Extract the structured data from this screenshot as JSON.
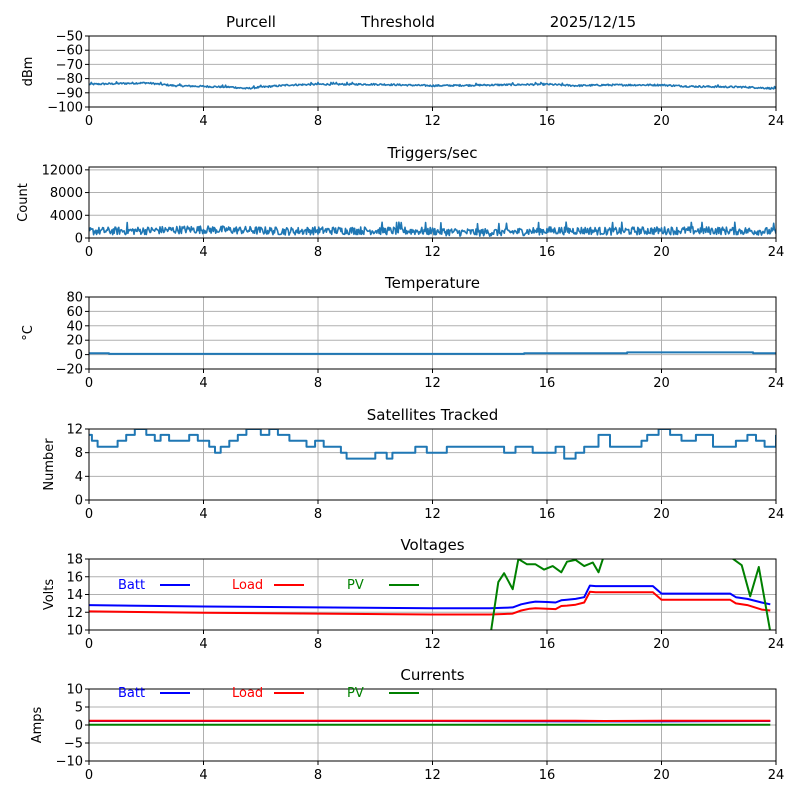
{
  "header": {
    "station": "Purcell",
    "mode": "Threshold",
    "date": "2025/12/15"
  },
  "chart_data": [
    {
      "id": "signal",
      "type": "line",
      "title": "",
      "xlabel": "",
      "ylabel": "dBm",
      "xlim": [
        0,
        24
      ],
      "ylim": [
        -100,
        -50
      ],
      "xticks": [
        0,
        4,
        8,
        12,
        16,
        20,
        24
      ],
      "yticks": [
        -100,
        -90,
        -80,
        -70,
        -60,
        -50
      ],
      "ytick_labels": [
        "−100",
        "−90",
        "−80",
        "−70",
        "−60",
        "−50"
      ],
      "grid": true,
      "noise": 0.6,
      "series": [
        {
          "name": "signal",
          "color": "#1f77b4",
          "x": [
            0,
            1,
            2,
            2.5,
            3,
            4,
            5,
            5.5,
            6,
            7,
            8,
            10,
            11,
            12,
            14,
            16,
            17,
            18,
            20,
            21,
            23,
            24
          ],
          "y": [
            -84,
            -83.5,
            -83,
            -84,
            -85,
            -85.5,
            -86,
            -87,
            -86,
            -84.5,
            -84,
            -84,
            -84.5,
            -85,
            -84.5,
            -84,
            -85,
            -84.5,
            -84.5,
            -85.5,
            -86,
            -87
          ]
        }
      ]
    },
    {
      "id": "triggers",
      "type": "line",
      "title": "Triggers/sec",
      "xlabel": "",
      "ylabel": "Count",
      "xlim": [
        0,
        24
      ],
      "ylim": [
        0,
        12500
      ],
      "xticks": [
        0,
        4,
        8,
        12,
        16,
        20,
        24
      ],
      "yticks": [
        0,
        4000,
        8000,
        12000
      ],
      "ytick_labels": [
        "0",
        "4000",
        "8000",
        "12000"
      ],
      "grid": true,
      "noise": 700,
      "series": [
        {
          "name": "triggers",
          "color": "#1f77b4",
          "x": [
            0,
            2,
            3.5,
            5,
            7,
            8,
            10,
            12,
            13,
            14,
            15,
            16,
            17.5,
            18,
            20,
            22,
            23.5,
            24
          ],
          "y": [
            1200,
            1300,
            1500,
            1400,
            1200,
            1300,
            1300,
            1200,
            1000,
            1000,
            1100,
            1300,
            1300,
            1200,
            1300,
            1300,
            1200,
            1100
          ]
        }
      ]
    },
    {
      "id": "temperature",
      "type": "line",
      "title": "Temperature",
      "xlabel": "",
      "ylabel": "°C",
      "xlim": [
        0,
        24
      ],
      "ylim": [
        -20,
        80
      ],
      "xticks": [
        0,
        4,
        8,
        12,
        16,
        20,
        24
      ],
      "yticks": [
        -20,
        0,
        20,
        40,
        60,
        80
      ],
      "ytick_labels": [
        "−20",
        "0",
        "20",
        "40",
        "60",
        "80"
      ],
      "grid": true,
      "step": true,
      "series": [
        {
          "name": "temperature",
          "color": "#1f77b4",
          "x": [
            0,
            0.7,
            15.2,
            18.8,
            23.2,
            24
          ],
          "y": [
            2,
            1,
            2,
            3,
            2,
            2
          ]
        }
      ]
    },
    {
      "id": "satellites",
      "type": "line",
      "title": "Satellites Tracked",
      "xlabel": "",
      "ylabel": "Number",
      "xlim": [
        0,
        24
      ],
      "ylim": [
        0,
        12
      ],
      "xticks": [
        0,
        4,
        8,
        12,
        16,
        20,
        24
      ],
      "yticks": [
        0,
        4,
        8,
        12
      ],
      "ytick_labels": [
        "0",
        "4",
        "8",
        "12"
      ],
      "grid": true,
      "step": true,
      "series": [
        {
          "name": "satellites",
          "color": "#1f77b4",
          "x": [
            0,
            0.1,
            0.3,
            1.0,
            1.3,
            1.6,
            2.0,
            2.3,
            2.5,
            2.8,
            3.0,
            3.5,
            3.8,
            4.0,
            4.2,
            4.4,
            4.6,
            4.9,
            5.2,
            5.5,
            6.0,
            6.3,
            6.6,
            7.0,
            7.6,
            7.9,
            8.2,
            8.4,
            8.8,
            9.0,
            9.6,
            10.0,
            10.4,
            10.6,
            11.2,
            11.4,
            11.8,
            12.5,
            12.8,
            14.2,
            14.5,
            14.9,
            15.5,
            16.3,
            16.6,
            17.0,
            17.3,
            17.8,
            18.2,
            18.6,
            19.3,
            19.5,
            19.9,
            20.3,
            20.7,
            21.2,
            21.8,
            22.2,
            22.6,
            23.0,
            23.3,
            23.6,
            24
          ],
          "y": [
            11,
            10,
            9,
            10,
            11,
            12,
            11,
            10,
            11,
            10,
            10,
            11,
            10,
            10,
            9,
            8,
            9,
            10,
            11,
            12,
            11,
            12,
            11,
            10,
            9,
            10,
            9,
            9,
            8,
            7,
            7,
            8,
            7,
            8,
            8,
            9,
            8,
            9,
            9,
            9,
            8,
            9,
            8,
            9,
            7,
            8,
            9,
            11,
            9,
            9,
            10,
            11,
            12,
            11,
            10,
            11,
            9,
            9,
            10,
            11,
            10,
            9,
            11
          ]
        }
      ]
    },
    {
      "id": "voltages",
      "type": "line",
      "title": "Voltages",
      "xlabel": "",
      "ylabel": "Volts",
      "xlim": [
        0,
        24
      ],
      "ylim": [
        10,
        18
      ],
      "xticks": [
        0,
        4,
        8,
        12,
        16,
        20,
        24
      ],
      "yticks": [
        10,
        12,
        14,
        16,
        18
      ],
      "ytick_labels": [
        "10",
        "12",
        "14",
        "16",
        "18"
      ],
      "grid": true,
      "legend": "top-left (inline row)",
      "series": [
        {
          "name": "Batt",
          "color": "#0000ff",
          "x": [
            0,
            4,
            8,
            12,
            14,
            14.5,
            14.8,
            15.1,
            15.4,
            15.6,
            16.0,
            16.3,
            16.5,
            16.7,
            17.0,
            17.3,
            17.5,
            17.7,
            18.5,
            19.3,
            19.7,
            20.0,
            21.0,
            22.0,
            22.4,
            22.6,
            23.0,
            23.5,
            23.8
          ],
          "y": [
            12.8,
            12.65,
            12.55,
            12.45,
            12.45,
            12.5,
            12.55,
            12.9,
            13.1,
            13.2,
            13.15,
            13.1,
            13.35,
            13.4,
            13.5,
            13.7,
            15.0,
            14.95,
            14.95,
            14.95,
            14.95,
            14.1,
            14.1,
            14.1,
            14.1,
            13.7,
            13.5,
            13.1,
            12.9
          ]
        },
        {
          "name": "Load",
          "color": "#ff0000",
          "x": [
            0,
            4,
            8,
            12,
            14,
            14.5,
            14.8,
            15.1,
            15.4,
            15.6,
            16.0,
            16.3,
            16.5,
            16.7,
            17.0,
            17.3,
            17.5,
            17.7,
            18.5,
            19.3,
            19.7,
            20.0,
            21.0,
            22.0,
            22.4,
            22.6,
            23.0,
            23.5,
            23.8
          ],
          "y": [
            12.1,
            11.95,
            11.85,
            11.75,
            11.75,
            11.8,
            11.85,
            12.2,
            12.4,
            12.45,
            12.4,
            12.35,
            12.7,
            12.75,
            12.85,
            13.1,
            14.3,
            14.25,
            14.25,
            14.25,
            14.25,
            13.4,
            13.4,
            13.4,
            13.4,
            13.0,
            12.8,
            12.3,
            12.2
          ]
        },
        {
          "name": "PV",
          "color": "#008000",
          "x": [
            14.05,
            14.3,
            14.5,
            14.8,
            15.0,
            15.3,
            15.6,
            15.9,
            16.2,
            16.5,
            16.7,
            17.0,
            17.3,
            17.6,
            17.8,
            18.0,
            22.3,
            22.5,
            22.8,
            23.1,
            23.4,
            23.8
          ],
          "y": [
            10,
            15.4,
            16.4,
            14.6,
            18.0,
            17.4,
            17.4,
            16.8,
            17.2,
            16.5,
            17.7,
            17.9,
            17.2,
            17.6,
            16.5,
            18.5,
            18.5,
            18.0,
            17.3,
            13.8,
            17.1,
            9.8
          ]
        }
      ]
    },
    {
      "id": "currents",
      "type": "line",
      "title": "Currents",
      "xlabel": "",
      "ylabel": "Amps",
      "xlim": [
        0,
        24
      ],
      "ylim": [
        -10,
        10
      ],
      "xticks": [
        0,
        4,
        8,
        12,
        16,
        20,
        24
      ],
      "yticks": [
        -10,
        -5,
        0,
        5,
        10
      ],
      "ytick_labels": [
        "−10",
        "−5",
        "0",
        "5",
        "10"
      ],
      "grid": true,
      "legend": "top-left (inline row)",
      "series": [
        {
          "name": "Batt",
          "color": "#0000ff",
          "x": [
            0,
            12,
            17,
            20,
            23.8
          ],
          "y": [
            1.1,
            1.1,
            1.0,
            1.0,
            1.1
          ]
        },
        {
          "name": "Load",
          "color": "#ff0000",
          "x": [
            0,
            12,
            17,
            18,
            20,
            23.8
          ],
          "y": [
            1.2,
            1.2,
            1.2,
            1.1,
            1.2,
            1.2
          ]
        },
        {
          "name": "PV",
          "color": "#008000",
          "x": [
            0,
            23.8
          ],
          "y": [
            0.05,
            0.05
          ]
        }
      ]
    }
  ]
}
